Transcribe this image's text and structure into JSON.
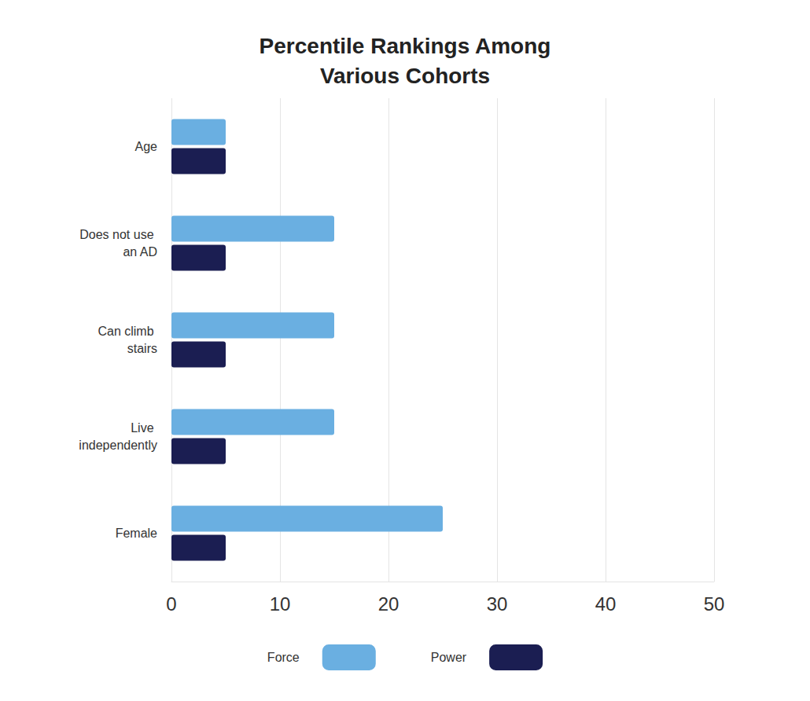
{
  "chart_data": {
    "type": "bar",
    "orientation": "horizontal",
    "title": "Percentile Rankings Among\nVarious Cohorts",
    "categories": [
      "Age",
      "Does not use an AD",
      "Can climb stairs",
      "Live independently",
      "Female"
    ],
    "series": [
      {
        "name": "Force",
        "color": "#6aafe1",
        "values": [
          5,
          15,
          15,
          15,
          25
        ]
      },
      {
        "name": "Power",
        "color": "#1b1e52",
        "values": [
          5,
          5,
          5,
          5,
          5
        ]
      }
    ],
    "xlim": [
      0,
      50
    ],
    "xticks": [
      0,
      10,
      20,
      30,
      40,
      50
    ],
    "grid": true,
    "legend": "bottom"
  }
}
